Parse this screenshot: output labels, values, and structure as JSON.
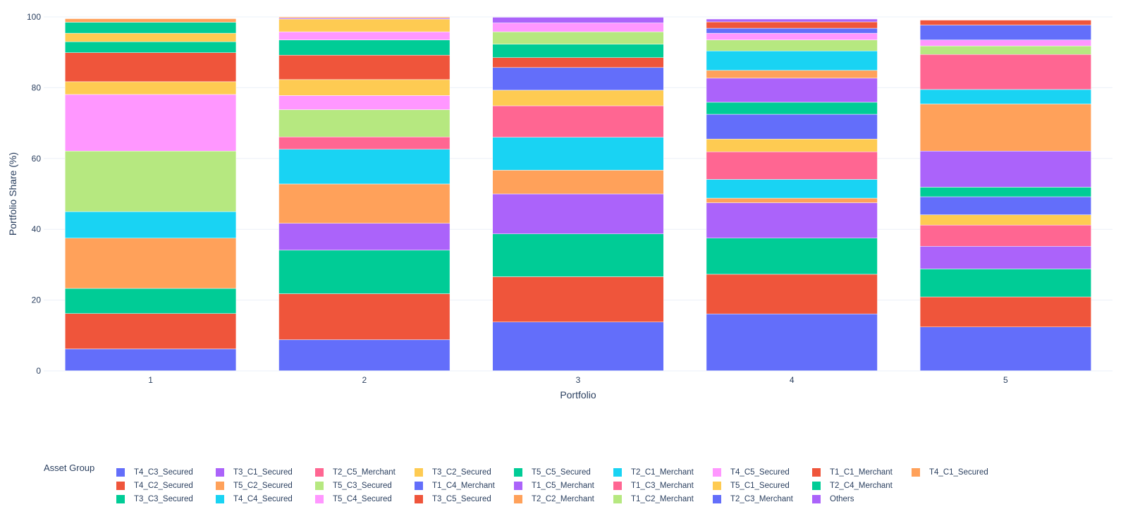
{
  "chart_data": {
    "type": "bar",
    "barmode": "stack",
    "xlabel": "Portfolio",
    "ylabel": "Portfolio Share (%)",
    "ylim": [
      0,
      100
    ],
    "yticks": [
      0,
      20,
      40,
      60,
      80,
      100
    ],
    "categories": [
      "1",
      "2",
      "3",
      "4",
      "5"
    ],
    "legend_title": "Asset Group",
    "legend_position": "bottom",
    "series": [
      {
        "name": "T4_C3_Secured",
        "color": "#636efa",
        "values": [
          6.2,
          8.8,
          13.8,
          16.1,
          12.4
        ]
      },
      {
        "name": "T4_C2_Secured",
        "color": "#ef553b",
        "values": [
          10.0,
          13.0,
          12.8,
          11.2,
          8.5
        ]
      },
      {
        "name": "T3_C3_Secured",
        "color": "#00cc96",
        "values": [
          7.1,
          12.3,
          12.1,
          10.2,
          7.9
        ]
      },
      {
        "name": "T3_C1_Secured",
        "color": "#ab63fa",
        "values": [
          0,
          7.6,
          11.3,
          10.0,
          6.4
        ]
      },
      {
        "name": "T5_C2_Secured",
        "color": "#ffa15a",
        "values": [
          14.2,
          11.1,
          6.7,
          1.3,
          0
        ]
      },
      {
        "name": "T4_C4_Secured",
        "color": "#19d3f3",
        "values": [
          7.5,
          9.8,
          9.3,
          5.3,
          0
        ]
      },
      {
        "name": "T2_C5_Merchant",
        "color": "#ff6692",
        "values": [
          0,
          3.5,
          8.9,
          7.8,
          6.0
        ]
      },
      {
        "name": "T5_C3_Secured",
        "color": "#b6e880",
        "values": [
          17.1,
          7.7,
          0,
          0,
          0
        ]
      },
      {
        "name": "T5_C4_Secured",
        "color": "#ff97ff",
        "values": [
          16.0,
          4.0,
          0,
          0,
          0
        ]
      },
      {
        "name": "T3_C2_Secured",
        "color": "#fecb52",
        "values": [
          3.6,
          4.5,
          4.4,
          3.6,
          2.9
        ]
      },
      {
        "name": "T1_C4_Merchant",
        "color": "#636efa",
        "values": [
          0,
          0,
          6.4,
          7.0,
          5.1
        ]
      },
      {
        "name": "T3_C5_Secured",
        "color": "#ef553b",
        "values": [
          8.2,
          6.9,
          2.8,
          0,
          0
        ]
      },
      {
        "name": "T5_C5_Secured",
        "color": "#00cc96",
        "values": [
          3.1,
          4.3,
          3.8,
          3.4,
          2.7
        ]
      },
      {
        "name": "T1_C5_Merchant",
        "color": "#ab63fa",
        "values": [
          0,
          0,
          0,
          6.8,
          10.2
        ]
      },
      {
        "name": "T2_C2_Merchant",
        "color": "#ffa15a",
        "values": [
          0,
          0,
          0,
          2.2,
          13.3
        ]
      },
      {
        "name": "T2_C1_Merchant",
        "color": "#19d3f3",
        "values": [
          0,
          0,
          0,
          5.5,
          4.1
        ]
      },
      {
        "name": "T1_C3_Merchant",
        "color": "#ff6692",
        "values": [
          0,
          0,
          0,
          0,
          9.9
        ]
      },
      {
        "name": "T1_C2_Merchant",
        "color": "#b6e880",
        "values": [
          0,
          0,
          3.5,
          3.1,
          2.4
        ]
      },
      {
        "name": "T4_C5_Secured",
        "color": "#ff97ff",
        "values": [
          0,
          2.3,
          2.5,
          1.9,
          1.7
        ]
      },
      {
        "name": "T5_C1_Secured",
        "color": "#fecb52",
        "values": [
          2.4,
          3.6,
          0,
          0,
          0
        ]
      },
      {
        "name": "T2_C3_Merchant",
        "color": "#636efa",
        "values": [
          0,
          0,
          0,
          1.4,
          4.2
        ]
      },
      {
        "name": "T1_C1_Merchant",
        "color": "#ef553b",
        "values": [
          0,
          0,
          0,
          1.8,
          1.4
        ]
      },
      {
        "name": "T2_C4_Merchant",
        "color": "#00cc96",
        "values": [
          3.1,
          0,
          0,
          0,
          0
        ]
      },
      {
        "name": "Others",
        "color": "#ab63fa",
        "values": [
          0,
          0.3,
          1.6,
          0.8,
          0
        ]
      },
      {
        "name": "T4_C1_Secured",
        "color": "#ffa15a",
        "values": [
          1.0,
          0.3,
          0,
          0,
          0
        ]
      }
    ]
  }
}
